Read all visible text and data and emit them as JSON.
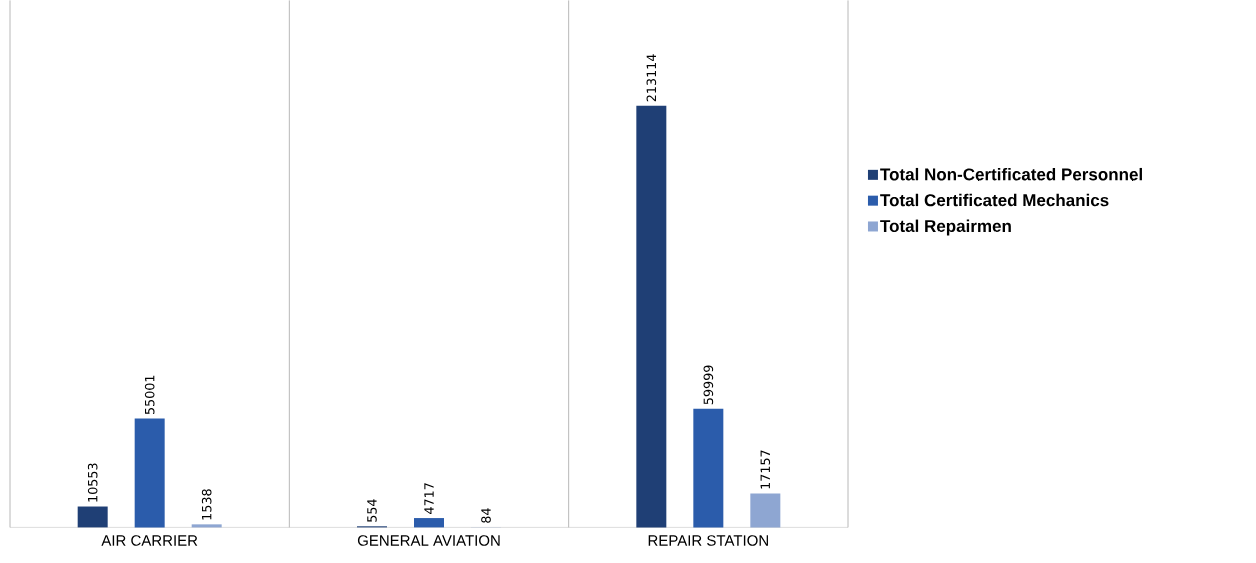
{
  "chart_data": {
    "type": "bar",
    "categories": [
      "AIR CARRIER",
      "GENERAL AVIATION",
      "REPAIR STATION"
    ],
    "series": [
      {
        "name": "Total Non-Certificated Personnel",
        "color": "#1f3f75",
        "values": [
          10553,
          554,
          213114
        ]
      },
      {
        "name": "Total Certificated Mechanics",
        "color": "#2b5cab",
        "values": [
          55001,
          4717,
          59999
        ]
      },
      {
        "name": "Total Repairmen",
        "color": "#8ea6d2",
        "values": [
          1538,
          84,
          17157
        ]
      }
    ],
    "data_labels": true,
    "legend": "right"
  }
}
